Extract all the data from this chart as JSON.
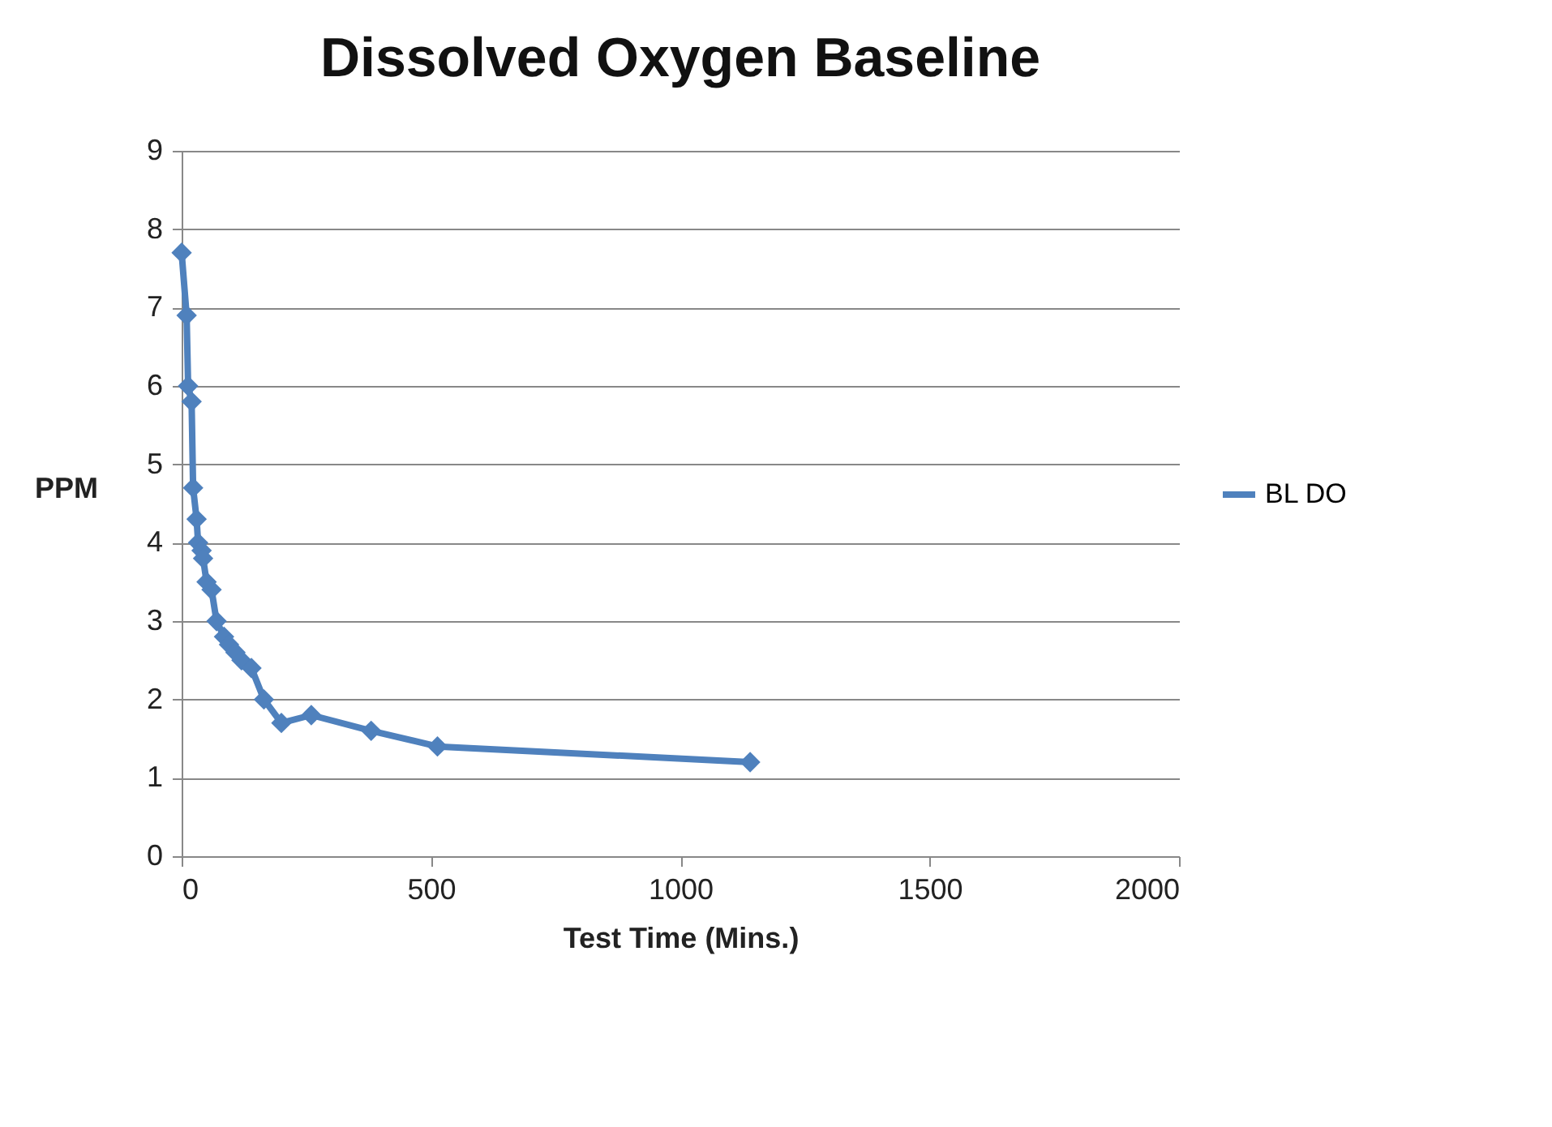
{
  "chart_data": {
    "type": "line",
    "title": "Dissolved Oxygen Baseline",
    "xlabel": "Test Time (Mins.)",
    "ylabel": "PPM",
    "x": [
      0,
      10,
      13,
      20,
      23,
      30,
      33,
      40,
      43,
      50,
      60,
      70,
      85,
      95,
      108,
      120,
      140,
      165,
      200,
      260,
      380,
      513,
      1140
    ],
    "series": [
      {
        "name": "BL DO",
        "color": "#4f81bd",
        "values": [
          7.7,
          6.9,
          6.0,
          5.8,
          4.7,
          4.3,
          4.0,
          3.9,
          3.8,
          3.5,
          3.4,
          3.0,
          2.8,
          2.7,
          2.6,
          2.5,
          2.4,
          2.0,
          1.7,
          1.8,
          1.6,
          1.4,
          1.2
        ]
      }
    ],
    "xlim": [
      0,
      2000
    ],
    "xticks": [
      0,
      500,
      1000,
      1500,
      2000
    ],
    "ylim": [
      0,
      9
    ],
    "yticks": [
      0,
      1,
      2,
      3,
      4,
      5,
      6,
      7,
      8,
      9
    ],
    "grid": "y",
    "legend": "right",
    "marker": "diamond",
    "line_style": "solid"
  }
}
